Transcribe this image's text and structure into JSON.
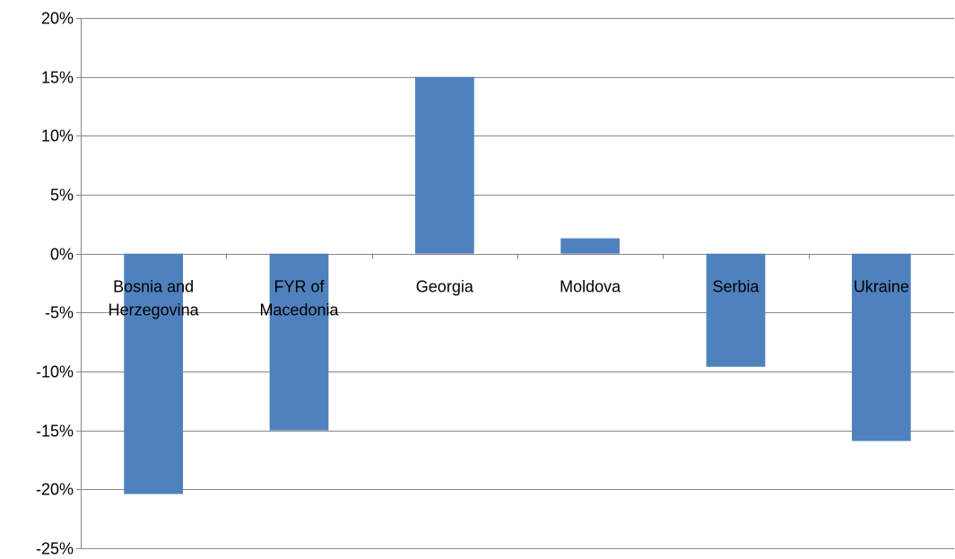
{
  "chart_data": {
    "type": "bar",
    "categories": [
      [
        "Bosnia and",
        "Herzegovina"
      ],
      [
        "FYR of",
        "Macedonia"
      ],
      [
        "Georgia"
      ],
      [
        "Moldova"
      ],
      [
        "Serbia"
      ],
      [
        "Ukraine"
      ]
    ],
    "values": [
      -20.4,
      -15.0,
      15.0,
      1.3,
      -9.6,
      -15.9
    ],
    "ylim": [
      -25,
      20
    ],
    "yticks": [
      20,
      15,
      10,
      5,
      0,
      -5,
      -10,
      -15,
      -20,
      -25
    ],
    "ytick_labels": [
      "20%",
      "15%",
      "10%",
      "5%",
      "0%",
      "-5%",
      "-10%",
      "-15%",
      "-20%",
      "-25%"
    ],
    "grid": true,
    "legend": "none",
    "bar_color": "#4f81bd",
    "grid_color": "#868686",
    "title": "",
    "xlabel": "",
    "ylabel": ""
  }
}
